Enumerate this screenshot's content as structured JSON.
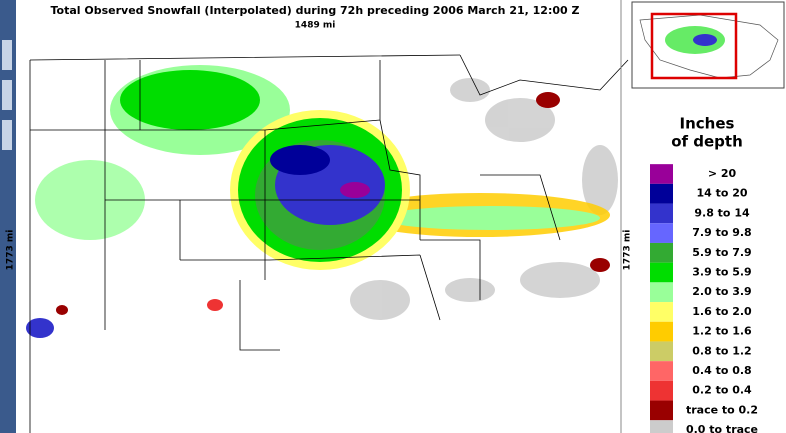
{
  "title": "Total Observed Snowfall (Interpolated) during 72h preceding 2006 March 21, 12:00 Z",
  "scale": {
    "top": "1489 mi",
    "left": "1773 mi",
    "right": "1773 mi"
  },
  "legend": {
    "title": [
      "Inches",
      "of depth"
    ],
    "items": [
      {
        "label": "> 20",
        "color": "#990099"
      },
      {
        "label": "14 to 20",
        "color": "#000099"
      },
      {
        "label": "9.8 to 14",
        "color": "#3333cc"
      },
      {
        "label": "7.9 to 9.8",
        "color": "#6666ff"
      },
      {
        "label": "5.9 to 7.9",
        "color": "#33aa33"
      },
      {
        "label": "3.9 to 5.9",
        "color": "#00dd00"
      },
      {
        "label": "2.0 to 3.9",
        "color": "#99ff99"
      },
      {
        "label": "1.6 to 2.0",
        "color": "#ffff66"
      },
      {
        "label": "1.2 to 1.6",
        "color": "#ffcc00"
      },
      {
        "label": "0.8 to 1.2",
        "color": "#cccc66"
      },
      {
        "label": "0.4 to 0.8",
        "color": "#ff6666"
      },
      {
        "label": "0.2 to 0.4",
        "color": "#ee3333"
      },
      {
        "label": "trace to 0.2",
        "color": "#990000"
      },
      {
        "label": "0.0 to trace",
        "color": "#cccccc"
      }
    ]
  }
}
